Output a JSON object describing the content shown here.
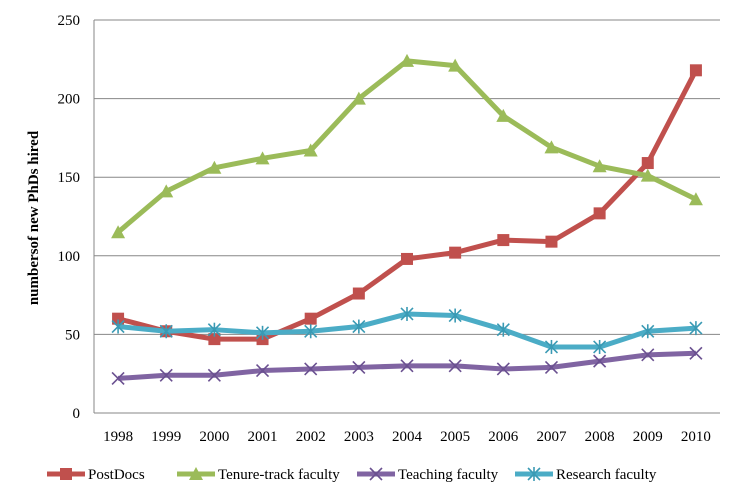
{
  "chart_data": {
    "type": "line",
    "title": "",
    "xlabel": "",
    "ylabel": "numbersof new PhDs hired",
    "categories": [
      "1998",
      "1999",
      "2000",
      "2001",
      "2002",
      "2003",
      "2004",
      "2005",
      "2006",
      "2007",
      "2008",
      "2009",
      "2010"
    ],
    "ylim": [
      0,
      250
    ],
    "yticks": [
      0,
      50,
      100,
      150,
      200,
      250
    ],
    "grid": true,
    "legend_position": "bottom",
    "series": [
      {
        "name": "PostDocs",
        "color": "#c0504d",
        "marker": "square",
        "values": [
          60,
          52,
          47,
          47,
          60,
          76,
          98,
          102,
          110,
          109,
          127,
          159,
          218
        ]
      },
      {
        "name": "Tenure-track faculty",
        "color": "#9bbb59",
        "marker": "triangle",
        "values": [
          115,
          141,
          156,
          162,
          167,
          200,
          224,
          221,
          189,
          169,
          157,
          151,
          136
        ]
      },
      {
        "name": "Teaching faculty",
        "color": "#8064a2",
        "marker": "x",
        "values": [
          22,
          24,
          24,
          27,
          28,
          29,
          30,
          30,
          28,
          29,
          33,
          37,
          38
        ]
      },
      {
        "name": "Research faculty",
        "color": "#4bacc6",
        "marker": "asterisk",
        "values": [
          55,
          52,
          53,
          51,
          52,
          55,
          63,
          62,
          53,
          42,
          42,
          52,
          54
        ]
      }
    ]
  }
}
